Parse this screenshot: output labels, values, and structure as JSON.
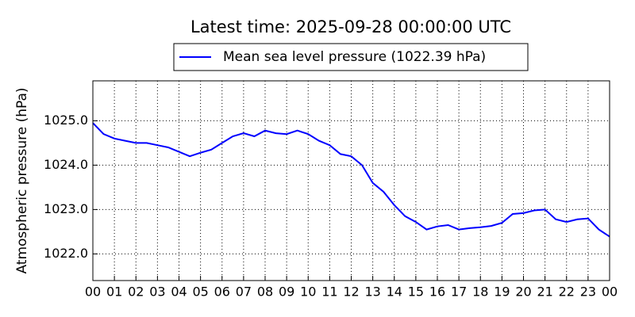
{
  "chart_data": {
    "type": "line",
    "title": "Latest time: 2025-09-28 00:00:00 UTC",
    "y_label": "Atmospheric pressure (hPa)",
    "x": [
      0,
      0.5,
      1,
      1.5,
      2,
      2.5,
      3,
      3.5,
      4,
      4.5,
      5,
      5.5,
      6,
      6.5,
      7,
      7.5,
      8,
      8.5,
      9,
      9.5,
      10,
      10.5,
      11,
      11.5,
      12,
      12.5,
      13,
      13.5,
      14,
      14.5,
      15,
      15.5,
      16,
      16.5,
      17,
      17.5,
      18,
      18.5,
      19,
      19.5,
      20,
      20.5,
      21,
      21.5,
      22,
      22.5,
      23,
      23.5,
      24
    ],
    "series": [
      {
        "name": "Mean sea level pressure (1022.39 hPa)",
        "color": "#0000ff",
        "values": [
          1024.95,
          1024.7,
          1024.6,
          1024.55,
          1024.5,
          1024.5,
          1024.45,
          1024.4,
          1024.3,
          1024.2,
          1024.28,
          1024.35,
          1024.5,
          1024.65,
          1024.72,
          1024.65,
          1024.78,
          1024.72,
          1024.7,
          1024.78,
          1024.7,
          1024.55,
          1024.45,
          1024.25,
          1024.2,
          1024.0,
          1023.6,
          1023.4,
          1023.1,
          1022.85,
          1022.72,
          1022.55,
          1022.62,
          1022.65,
          1022.55,
          1022.58,
          1022.6,
          1022.63,
          1022.7,
          1022.9,
          1022.92,
          1022.98,
          1023.0,
          1022.78,
          1022.72,
          1022.78,
          1022.8,
          1022.55,
          1022.39
        ]
      }
    ],
    "xlim": [
      0,
      24
    ],
    "xticks": [
      {
        "value": 0,
        "label": "00"
      },
      {
        "value": 1,
        "label": "01"
      },
      {
        "value": 2,
        "label": "02"
      },
      {
        "value": 3,
        "label": "03"
      },
      {
        "value": 4,
        "label": "04"
      },
      {
        "value": 5,
        "label": "05"
      },
      {
        "value": 6,
        "label": "06"
      },
      {
        "value": 7,
        "label": "07"
      },
      {
        "value": 8,
        "label": "08"
      },
      {
        "value": 9,
        "label": "09"
      },
      {
        "value": 10,
        "label": "10"
      },
      {
        "value": 11,
        "label": "11"
      },
      {
        "value": 12,
        "label": "12"
      },
      {
        "value": 13,
        "label": "13"
      },
      {
        "value": 14,
        "label": "14"
      },
      {
        "value": 15,
        "label": "15"
      },
      {
        "value": 16,
        "label": "16"
      },
      {
        "value": 17,
        "label": "17"
      },
      {
        "value": 18,
        "label": "18"
      },
      {
        "value": 19,
        "label": "19"
      },
      {
        "value": 20,
        "label": "20"
      },
      {
        "value": 21,
        "label": "21"
      },
      {
        "value": 22,
        "label": "22"
      },
      {
        "value": 23,
        "label": "23"
      },
      {
        "value": 24,
        "label": "00"
      }
    ],
    "ylim": [
      1021.4,
      1025.9
    ],
    "yticks": [
      {
        "value": 1022,
        "label": "1022.0"
      },
      {
        "value": 1023,
        "label": "1023.0"
      },
      {
        "value": 1024,
        "label": "1024.0"
      },
      {
        "value": 1025,
        "label": "1025.0"
      }
    ],
    "grid": true,
    "legend": "top"
  }
}
